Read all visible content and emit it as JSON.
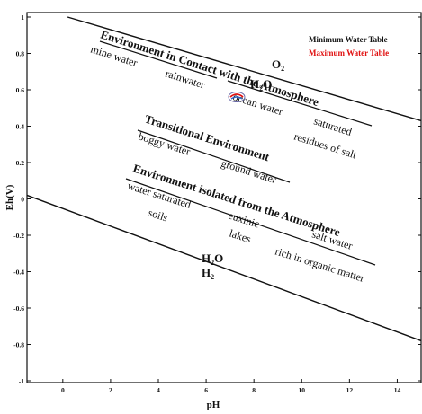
{
  "chart_data": {
    "type": "line",
    "xlabel": "pH",
    "ylabel": "Eh(V)",
    "xlim": [
      -1.5,
      15
    ],
    "ylim": [
      -1,
      1
    ],
    "xticks": [
      0,
      2,
      4,
      6,
      8,
      10,
      12,
      14
    ],
    "yticks": [
      1,
      0.8,
      0.6,
      0.4,
      0.2,
      0,
      -0.2,
      -0.4,
      -0.6,
      -0.8,
      -1
    ],
    "lines": [
      {
        "label_top": "O",
        "label_top_sub": "2",
        "label_bottom": "H",
        "label_bottom_sub": "2",
        "label_bottom_tail": "O",
        "x": [
          0.2,
          15
        ],
        "y": [
          1.0,
          0.43
        ],
        "color": "#111111"
      },
      {
        "label_top": "H",
        "label_top_sub": "2",
        "label_top_tail": "O",
        "label_bottom": "H",
        "label_bottom_sub": "2",
        "x": [
          -1.5,
          15
        ],
        "y": [
          0.02,
          -0.78
        ],
        "color": "#111111"
      }
    ],
    "legend": {
      "placement": "top-right",
      "items": [
        {
          "text": "Minimum Water Table",
          "color": "#111111"
        },
        {
          "text": "Maximum Water Table",
          "color": "#e01010"
        }
      ]
    },
    "annotations": {
      "contact": {
        "heading": "Environment in Contact with the Atmosphere",
        "items": [
          "mine water",
          "rainwater",
          "ocean water",
          "saturated",
          "residues of salt"
        ]
      },
      "transitional": {
        "heading": "Transitional Environment",
        "items": [
          "boggy water",
          "ground water"
        ]
      },
      "isolated": {
        "heading": "Environment isolated from the Atmosphere",
        "items": [
          "water saturated",
          "soils",
          "euxinic",
          "lakes",
          "salt water",
          "rich in organic matter"
        ]
      }
    }
  }
}
